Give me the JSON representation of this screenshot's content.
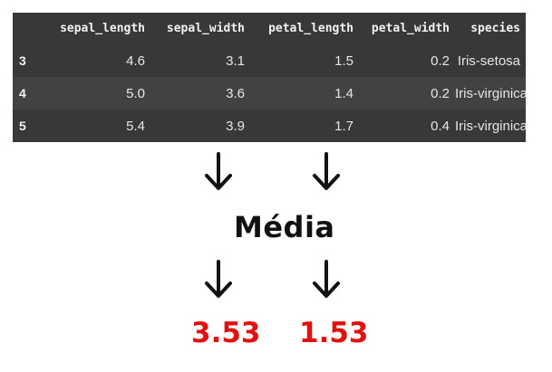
{
  "table": {
    "columns": [
      "sepal_length",
      "sepal_width",
      "petal_length",
      "petal_width",
      "species"
    ],
    "rows": [
      {
        "index": "3",
        "cells": [
          "4.6",
          "3.1",
          "1.5",
          "0.2",
          "Iris-setosa"
        ]
      },
      {
        "index": "4",
        "cells": [
          "5.0",
          "3.6",
          "1.4",
          "0.2",
          "Iris-virginica"
        ]
      },
      {
        "index": "5",
        "cells": [
          "5.4",
          "3.9",
          "1.7",
          "0.4",
          "Iris-virginica"
        ]
      }
    ]
  },
  "label": "Média",
  "results": {
    "sepal_width_mean": "3.53",
    "petal_length_mean": "1.53"
  },
  "colors": {
    "table_background": "#383838",
    "table_row_alt": "#424242",
    "result_color": "#e0110f",
    "arrow_color": "#111111"
  },
  "icons": [
    "arrow-down-icon"
  ]
}
